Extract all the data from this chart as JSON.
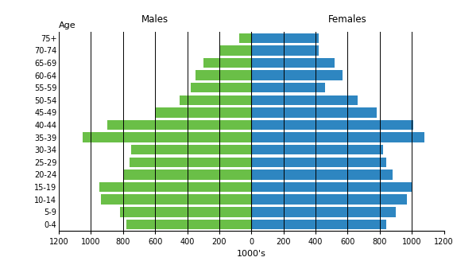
{
  "age_groups": [
    "0-4",
    "5-9",
    "10-14",
    "15-19",
    "20-24",
    "25-29",
    "30-34",
    "35-39",
    "40-44",
    "45-49",
    "50-54",
    "55-59",
    "60-64",
    "65-69",
    "70-74",
    "75+"
  ],
  "males": [
    780,
    820,
    940,
    950,
    800,
    760,
    750,
    1050,
    900,
    600,
    450,
    380,
    350,
    300,
    200,
    75
  ],
  "females": [
    840,
    900,
    970,
    1000,
    880,
    840,
    820,
    1080,
    1010,
    780,
    660,
    460,
    570,
    520,
    420,
    420
  ],
  "male_color": "#6abf47",
  "female_color": "#2e86c1",
  "title_males": "Males",
  "title_females": "Females",
  "xlabel": "1000's",
  "age_label": "Age",
  "xlim": 1200,
  "bar_height": 0.8,
  "grid_color": "#000000",
  "grid_linewidth": 0.7
}
